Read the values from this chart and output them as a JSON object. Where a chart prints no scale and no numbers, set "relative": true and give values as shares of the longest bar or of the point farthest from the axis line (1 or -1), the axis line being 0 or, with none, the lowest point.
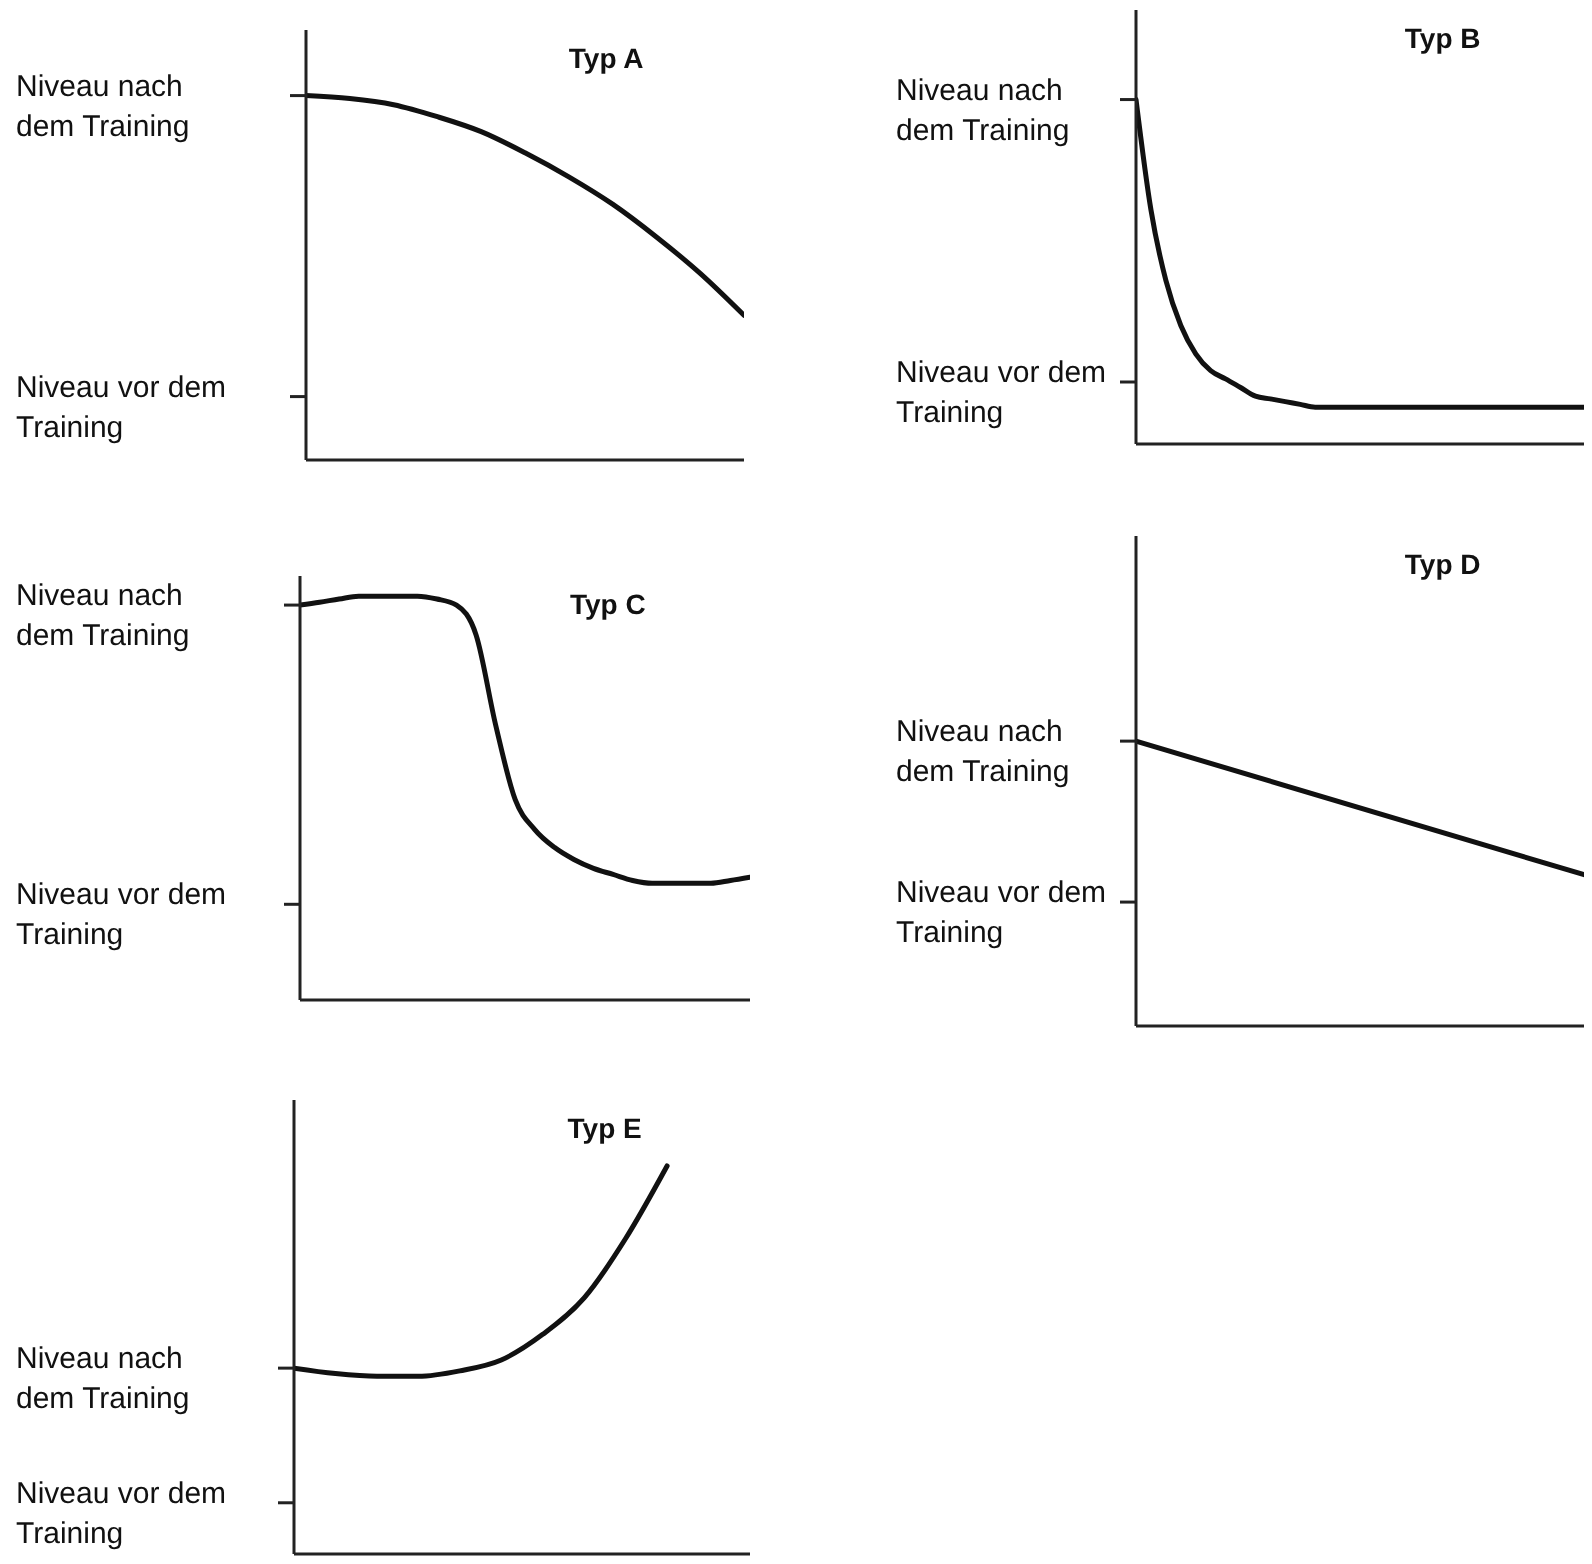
{
  "chart_data": [
    {
      "type": "line",
      "title": "Typ A",
      "relative": true,
      "categories": [
        null,
        null,
        null,
        null,
        null,
        null,
        null,
        null,
        null,
        null,
        null
      ],
      "series": [
        {
          "color": "#111111",
          "values": [
            1.0,
            0.992,
            0.975,
            0.942,
            0.901,
            0.843,
            0.777,
            0.702,
            0.612,
            0.512,
            0.397
          ]
        }
      ],
      "annotations": [
        "Niveau nach dem Training",
        "Niveau vor dem Training"
      ],
      "marker": "none",
      "line_style": "solid"
    },
    {
      "type": "line",
      "title": "Typ B",
      "relative": true,
      "categories": [
        null,
        null,
        null,
        null,
        null,
        null,
        null,
        null,
        null,
        null,
        null,
        null,
        null,
        null,
        null,
        null,
        null,
        null,
        null,
        null,
        null,
        null,
        null,
        null,
        null,
        null,
        null,
        null,
        null,
        null,
        null
      ],
      "series": [
        {
          "color": "#111111",
          "values": [
            1.0,
            0.68,
            0.475,
            0.344,
            0.262,
            0.213,
            0.189,
            0.164,
            0.139,
            0.131,
            0.123,
            0.115,
            0.107,
            0.107,
            0.107,
            0.107,
            0.107,
            0.107,
            0.107,
            0.107,
            0.107,
            0.107,
            0.107,
            0.107,
            0.107,
            0.107,
            0.107,
            0.107,
            0.107,
            0.107,
            0.107
          ]
        }
      ],
      "annotations": [
        "Niveau nach dem Training",
        "Niveau vor dem Training"
      ],
      "marker": "none",
      "line_style": "solid"
    },
    {
      "type": "line",
      "title": "Typ C",
      "relative": true,
      "categories": [
        null,
        null,
        null,
        null,
        null,
        null,
        null,
        null,
        null,
        null,
        null,
        null,
        null,
        null,
        null,
        null,
        null,
        null,
        null,
        null,
        null,
        null,
        null,
        null
      ],
      "series": [
        {
          "color": "#111111",
          "values": [
            0.978,
            0.985,
            0.993,
            1.0,
            1.0,
            1.0,
            1.0,
            0.993,
            0.978,
            0.904,
            0.681,
            0.496,
            0.422,
            0.378,
            0.348,
            0.326,
            0.311,
            0.296,
            0.289,
            0.289,
            0.289,
            0.289,
            0.296,
            0.304
          ]
        }
      ],
      "annotations": [
        "Niveau nach dem Training",
        "Niveau vor dem Training"
      ],
      "marker": "none",
      "line_style": "solid"
    },
    {
      "type": "line",
      "title": "Typ D",
      "relative": true,
      "categories": [
        null,
        null
      ],
      "series": [
        {
          "color": "#111111",
          "values": [
            1.0,
            0.531
          ]
        }
      ],
      "annotations": [
        "Niveau nach dem Training",
        "Niveau vor dem Training"
      ],
      "marker": "none",
      "line_style": "solid"
    },
    {
      "type": "line",
      "title": "Typ E",
      "relative": true,
      "categories": [
        null,
        null,
        null,
        null,
        null,
        null,
        null,
        null,
        null,
        null,
        null,
        null
      ],
      "series": [
        {
          "color": "#111111",
          "values": [
            0.479,
            0.465,
            0.458,
            0.458,
            0.472,
            0.5,
            0.566,
            0.66,
            0.813,
            1.0,
            null,
            null
          ]
        }
      ],
      "annotations": [
        "Niveau nach dem Training",
        "Niveau vor dem Training"
      ],
      "marker": "none",
      "line_style": "solid"
    }
  ]
}
